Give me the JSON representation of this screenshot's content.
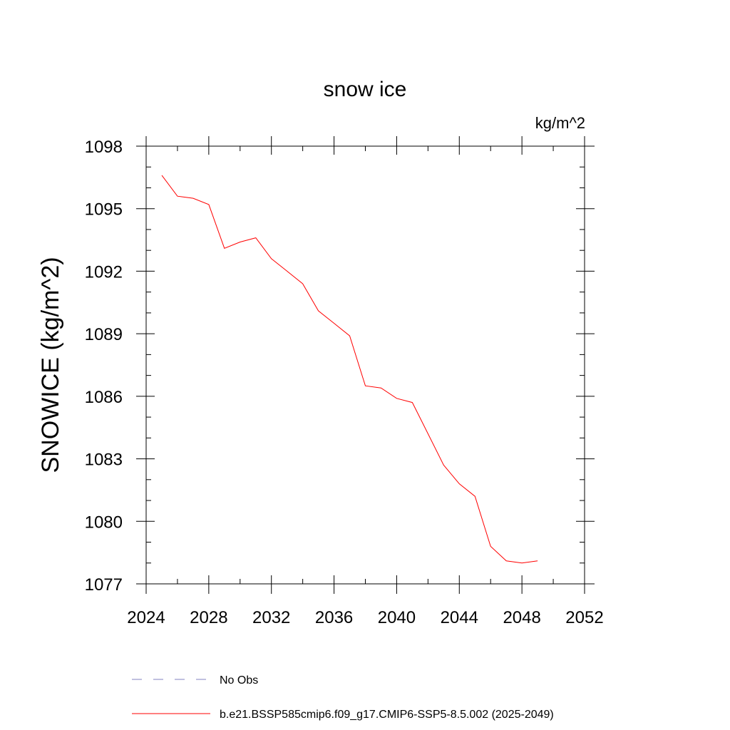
{
  "chart_data": {
    "type": "line",
    "title": "snow ice",
    "units": "kg/m^2",
    "ylabel": "SNOWICE  (kg/m^2)",
    "xlabel": "",
    "xlim": [
      2024,
      2052
    ],
    "ylim": [
      1077,
      1098
    ],
    "xticks": [
      2024,
      2028,
      2032,
      2036,
      2040,
      2044,
      2048,
      2052
    ],
    "yticks": [
      1077,
      1080,
      1083,
      1086,
      1089,
      1092,
      1095,
      1098
    ],
    "series": [
      {
        "name": "b.e21.BSSP585cmip6.f09_g17.CMIP6-SSP5-8.5.002 (2025-2049)",
        "color": "#ff0000",
        "style": "solid",
        "x": [
          2025,
          2026,
          2027,
          2028,
          2029,
          2030,
          2031,
          2032,
          2033,
          2034,
          2035,
          2036,
          2037,
          2038,
          2039,
          2040,
          2041,
          2042,
          2043,
          2044,
          2045,
          2046,
          2047,
          2048,
          2049
        ],
        "y": [
          1096.6,
          1095.6,
          1095.5,
          1095.2,
          1093.1,
          1093.4,
          1093.6,
          1092.6,
          1092.0,
          1091.4,
          1090.1,
          1089.5,
          1088.9,
          1086.5,
          1086.4,
          1085.9,
          1085.7,
          1084.2,
          1082.7,
          1081.8,
          1081.2,
          1078.8,
          1078.1,
          1078.0,
          1078.1
        ]
      }
    ],
    "legend": {
      "placement": "bottom",
      "entries": [
        {
          "label": "No Obs",
          "color": "#8080c0",
          "style": "dashed"
        },
        {
          "label": "b.e21.BSSP585cmip6.f09_g17.CMIP6-SSP5-8.5.002 (2025-2049)",
          "color": "#ff0000",
          "style": "solid"
        }
      ]
    }
  }
}
